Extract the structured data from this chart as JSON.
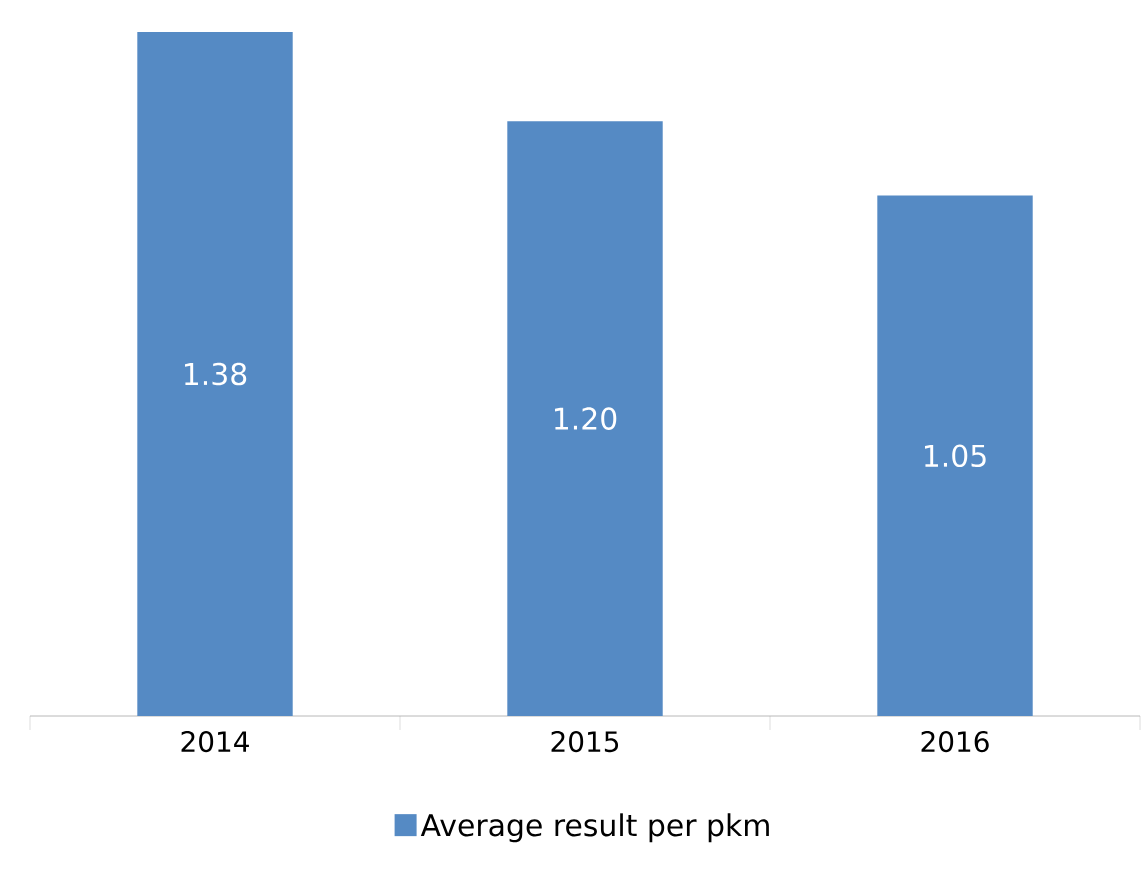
{
  "chart_data": {
    "type": "bar",
    "categories": [
      "2014",
      "2015",
      "2016"
    ],
    "series": [
      {
        "name": "Average result per pkm",
        "color": "#558ac4",
        "values": [
          1.38,
          1.2,
          1.05
        ],
        "value_labels": [
          "1.38",
          "1.20",
          "1.05"
        ]
      }
    ],
    "legend": "bottom",
    "grid": false
  }
}
